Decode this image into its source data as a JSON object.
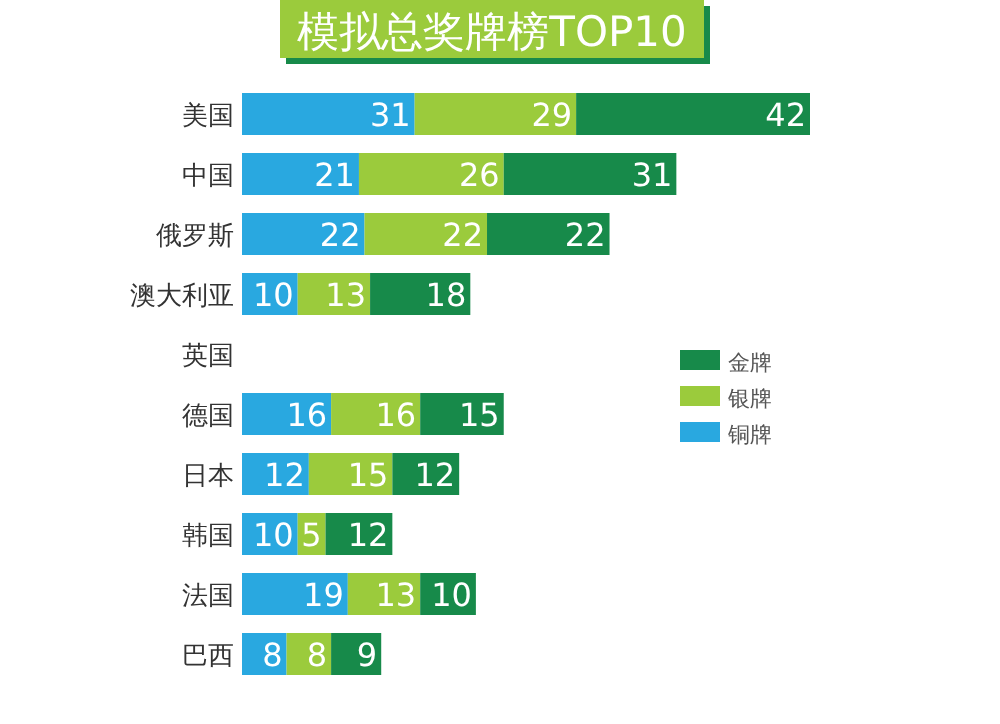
{
  "chart_data": {
    "type": "bar",
    "orientation": "horizontal",
    "stacked": true,
    "data_labels": true,
    "legend": "right",
    "title": "模拟总奖牌榜TOP10",
    "categories": [
      "美国",
      "中国",
      "俄罗斯",
      "澳大利亚",
      "英国",
      "德国",
      "日本",
      "韩国",
      "法国",
      "巴西"
    ],
    "series": [
      {
        "name": "铜牌",
        "color": "#29a8e0",
        "values": [
          31,
          21,
          22,
          10,
          null,
          16,
          12,
          10,
          19,
          8
        ]
      },
      {
        "name": "银牌",
        "color": "#9bcb3c",
        "values": [
          29,
          26,
          22,
          13,
          null,
          16,
          15,
          5,
          13,
          8
        ]
      },
      {
        "name": "金牌",
        "color": "#178a4a",
        "values": [
          42,
          31,
          22,
          18,
          null,
          15,
          12,
          12,
          10,
          9
        ]
      }
    ]
  }
}
